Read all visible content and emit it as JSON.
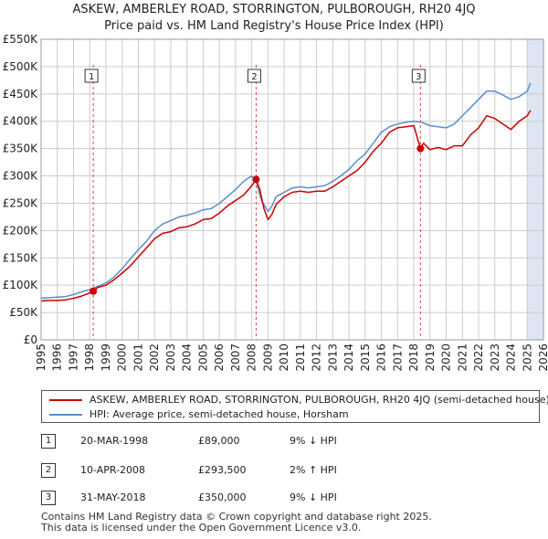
{
  "title_line1": "ASKEW, AMBERLEY ROAD, STORRINGTON, PULBOROUGH, RH20 4JQ",
  "title_line2": "Price paid vs. HM Land Registry's House Price Index (HPI)",
  "colors": {
    "price_line": "#cc0000",
    "hpi_line": "#5b8ec7",
    "future_shade": "#dde6f2",
    "marker_line": "#dd4444",
    "grid": "#cccccc"
  },
  "chart_data": {
    "type": "line",
    "title": "ASKEW, AMBERLEY ROAD, STORRINGTON, PULBOROUGH, RH20 4JQ — Price paid vs. HM Land Registry's House Price Index (HPI)",
    "xlabel": "",
    "ylabel": "",
    "xlim": [
      1995,
      2026
    ],
    "ylim": [
      0,
      550000
    ],
    "y_ticks": [
      {
        "value": 0,
        "label": "£0"
      },
      {
        "value": 50000,
        "label": "£50K"
      },
      {
        "value": 100000,
        "label": "£100K"
      },
      {
        "value": 150000,
        "label": "£150K"
      },
      {
        "value": 200000,
        "label": "£200K"
      },
      {
        "value": 250000,
        "label": "£250K"
      },
      {
        "value": 300000,
        "label": "£300K"
      },
      {
        "value": 350000,
        "label": "£350K"
      },
      {
        "value": 400000,
        "label": "£400K"
      },
      {
        "value": 450000,
        "label": "£450K"
      },
      {
        "value": 500000,
        "label": "£500K"
      },
      {
        "value": 550000,
        "label": "£550K"
      }
    ],
    "x_ticks": [
      "1995",
      "1996",
      "1997",
      "1998",
      "1999",
      "2000",
      "2001",
      "2002",
      "2003",
      "2004",
      "2005",
      "2006",
      "2007",
      "2008",
      "2009",
      "2010",
      "2011",
      "2012",
      "2013",
      "2014",
      "2015",
      "2016",
      "2017",
      "2018",
      "2019",
      "2020",
      "2021",
      "2022",
      "2023",
      "2024",
      "2025",
      "2026"
    ],
    "grid": true,
    "future_shade_from": 2025.0,
    "series": [
      {
        "name": "ASKEW, AMBERLEY ROAD, STORRINGTON, PULBOROUGH, RH20 4JQ (semi-detached house)",
        "color": "#cc0000",
        "x": [
          1995.0,
          1995.5,
          1996.0,
          1996.5,
          1997.0,
          1997.5,
          1998.0,
          1998.22,
          1998.5,
          1999.0,
          1999.5,
          2000.0,
          2000.5,
          2001.0,
          2001.5,
          2002.0,
          2002.5,
          2003.0,
          2003.5,
          2004.0,
          2004.5,
          2005.0,
          2005.5,
          2006.0,
          2006.5,
          2007.0,
          2007.5,
          2008.0,
          2008.27,
          2008.5,
          2008.75,
          2009.0,
          2009.25,
          2009.5,
          2010.0,
          2010.5,
          2011.0,
          2011.5,
          2012.0,
          2012.5,
          2013.0,
          2013.5,
          2014.0,
          2014.5,
          2015.0,
          2015.5,
          2016.0,
          2016.5,
          2017.0,
          2017.5,
          2018.0,
          2018.41,
          2018.6,
          2019.0,
          2019.5,
          2020.0,
          2020.5,
          2021.0,
          2021.5,
          2022.0,
          2022.5,
          2023.0,
          2023.5,
          2024.0,
          2024.5,
          2025.0,
          2025.2
        ],
        "values": [
          71000,
          72000,
          72000,
          73000,
          76000,
          80000,
          86000,
          89000,
          96000,
          100000,
          110000,
          122000,
          135000,
          152000,
          168000,
          185000,
          195000,
          198000,
          205000,
          207000,
          212000,
          220000,
          222000,
          232000,
          245000,
          255000,
          265000,
          282000,
          293500,
          275000,
          240000,
          220000,
          230000,
          248000,
          262000,
          270000,
          272000,
          270000,
          272000,
          272000,
          280000,
          290000,
          300000,
          310000,
          325000,
          345000,
          360000,
          380000,
          388000,
          390000,
          392000,
          350000,
          360000,
          348000,
          352000,
          348000,
          355000,
          355000,
          375000,
          388000,
          410000,
          405000,
          395000,
          385000,
          400000,
          410000,
          420000
        ]
      },
      {
        "name": "HPI: Average price, semi-detached house, Horsham",
        "color": "#5b8ec7",
        "x": [
          1995.0,
          1995.5,
          1996.0,
          1996.5,
          1997.0,
          1997.5,
          1998.0,
          1998.5,
          1999.0,
          1999.5,
          2000.0,
          2000.5,
          2001.0,
          2001.5,
          2002.0,
          2002.5,
          2003.0,
          2003.5,
          2004.0,
          2004.5,
          2005.0,
          2005.5,
          2006.0,
          2006.5,
          2007.0,
          2007.5,
          2008.0,
          2008.3,
          2008.6,
          2009.0,
          2009.25,
          2009.5,
          2010.0,
          2010.5,
          2011.0,
          2011.5,
          2012.0,
          2012.5,
          2013.0,
          2013.5,
          2014.0,
          2014.5,
          2015.0,
          2015.5,
          2016.0,
          2016.5,
          2017.0,
          2017.5,
          2018.0,
          2018.5,
          2019.0,
          2019.5,
          2020.0,
          2020.5,
          2021.0,
          2021.5,
          2022.0,
          2022.5,
          2023.0,
          2023.5,
          2024.0,
          2024.5,
          2025.0,
          2025.2
        ],
        "values": [
          76000,
          77000,
          78000,
          79000,
          83000,
          88000,
          92000,
          98000,
          104000,
          115000,
          130000,
          148000,
          165000,
          180000,
          200000,
          212000,
          218000,
          225000,
          228000,
          232000,
          238000,
          240000,
          250000,
          262000,
          275000,
          290000,
          300000,
          287000,
          255000,
          235000,
          245000,
          262000,
          270000,
          278000,
          280000,
          278000,
          280000,
          282000,
          290000,
          300000,
          312000,
          328000,
          340000,
          360000,
          380000,
          390000,
          395000,
          398000,
          400000,
          398000,
          392000,
          390000,
          388000,
          395000,
          410000,
          425000,
          440000,
          455000,
          455000,
          448000,
          440000,
          445000,
          455000,
          470000
        ]
      }
    ],
    "sales": [
      {
        "label": "1",
        "x": 1998.22,
        "value": 89000,
        "date": "20-MAR-1998",
        "price": "£89,000",
        "hpi": "9% ↓ HPI"
      },
      {
        "label": "2",
        "x": 2008.27,
        "value": 293500,
        "date": "10-APR-2008",
        "price": "£293,500",
        "hpi": "2% ↑ HPI"
      },
      {
        "label": "3",
        "x": 2018.41,
        "value": 350000,
        "date": "31-MAY-2018",
        "price": "£350,000",
        "hpi": "9% ↓ HPI"
      }
    ]
  },
  "legend": {
    "price_label": "ASKEW, AMBERLEY ROAD, STORRINGTON, PULBOROUGH, RH20 4JQ (semi-detached house)",
    "hpi_label": "HPI: Average price, semi-detached house, Horsham"
  },
  "footer": {
    "line1": "Contains HM Land Registry data © Crown copyright and database right 2025.",
    "line2": "This data is licensed under the Open Government Licence v3.0."
  }
}
